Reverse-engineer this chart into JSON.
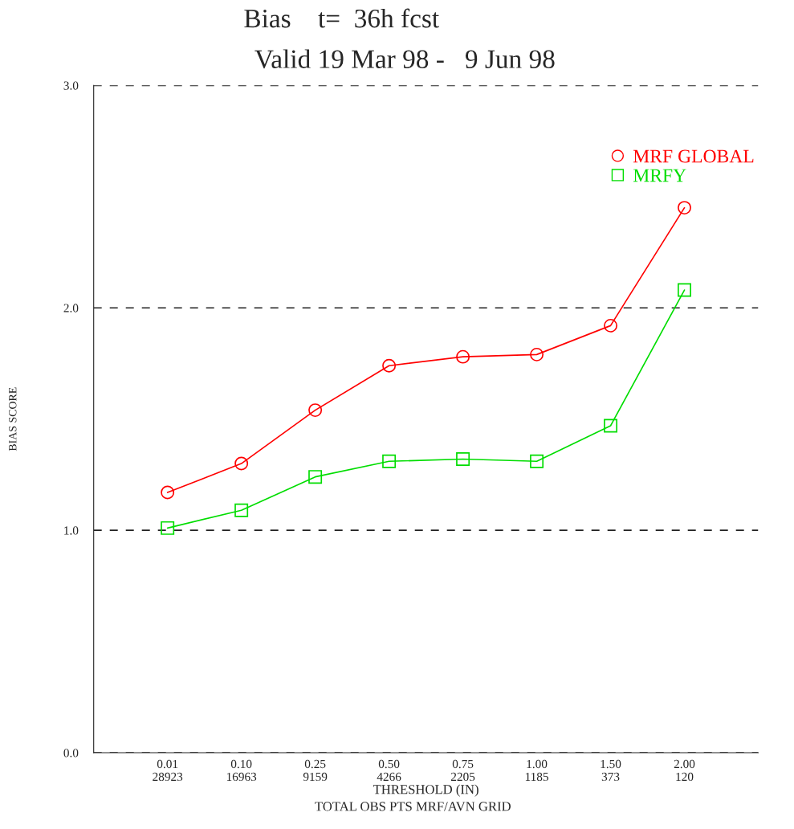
{
  "chart_data": {
    "type": "line",
    "title": "Bias    t=  36h fcst",
    "subtitle": "Valid 19 Mar 98 -   9 Jun 98",
    "xlabel": "THRESHOLD (IN)",
    "ylabel": "BIAS SCORE",
    "annotations": [
      "TOTAL OBS PTS MRF/AVN GRID"
    ],
    "categories": [
      "0.01\n28923",
      "0.10\n16963",
      "0.25\n9159",
      "0.50\n4266",
      "0.75\n2205",
      "1.00\n1185",
      "1.50\n373",
      "2.00\n120"
    ],
    "series": [
      {
        "name": "MRF GLOBAL",
        "color": "#ff0000",
        "marker": "circle",
        "values": [
          1.17,
          1.3,
          1.54,
          1.74,
          1.78,
          1.79,
          1.92,
          2.45
        ]
      },
      {
        "name": "MRFY",
        "color": "#00dd00",
        "marker": "square",
        "values": [
          1.01,
          1.09,
          1.24,
          1.31,
          1.32,
          1.31,
          1.47,
          2.08
        ]
      }
    ],
    "ylim": [
      0,
      3
    ],
    "yticks": [
      {
        "value": 0,
        "label": "0.0"
      },
      {
        "value": 1,
        "label": "1.0"
      },
      {
        "value": 2,
        "label": "2.0"
      },
      {
        "value": 3,
        "label": "3.0"
      }
    ],
    "grid": "y",
    "legend": "top right",
    "line_style": "solid"
  }
}
